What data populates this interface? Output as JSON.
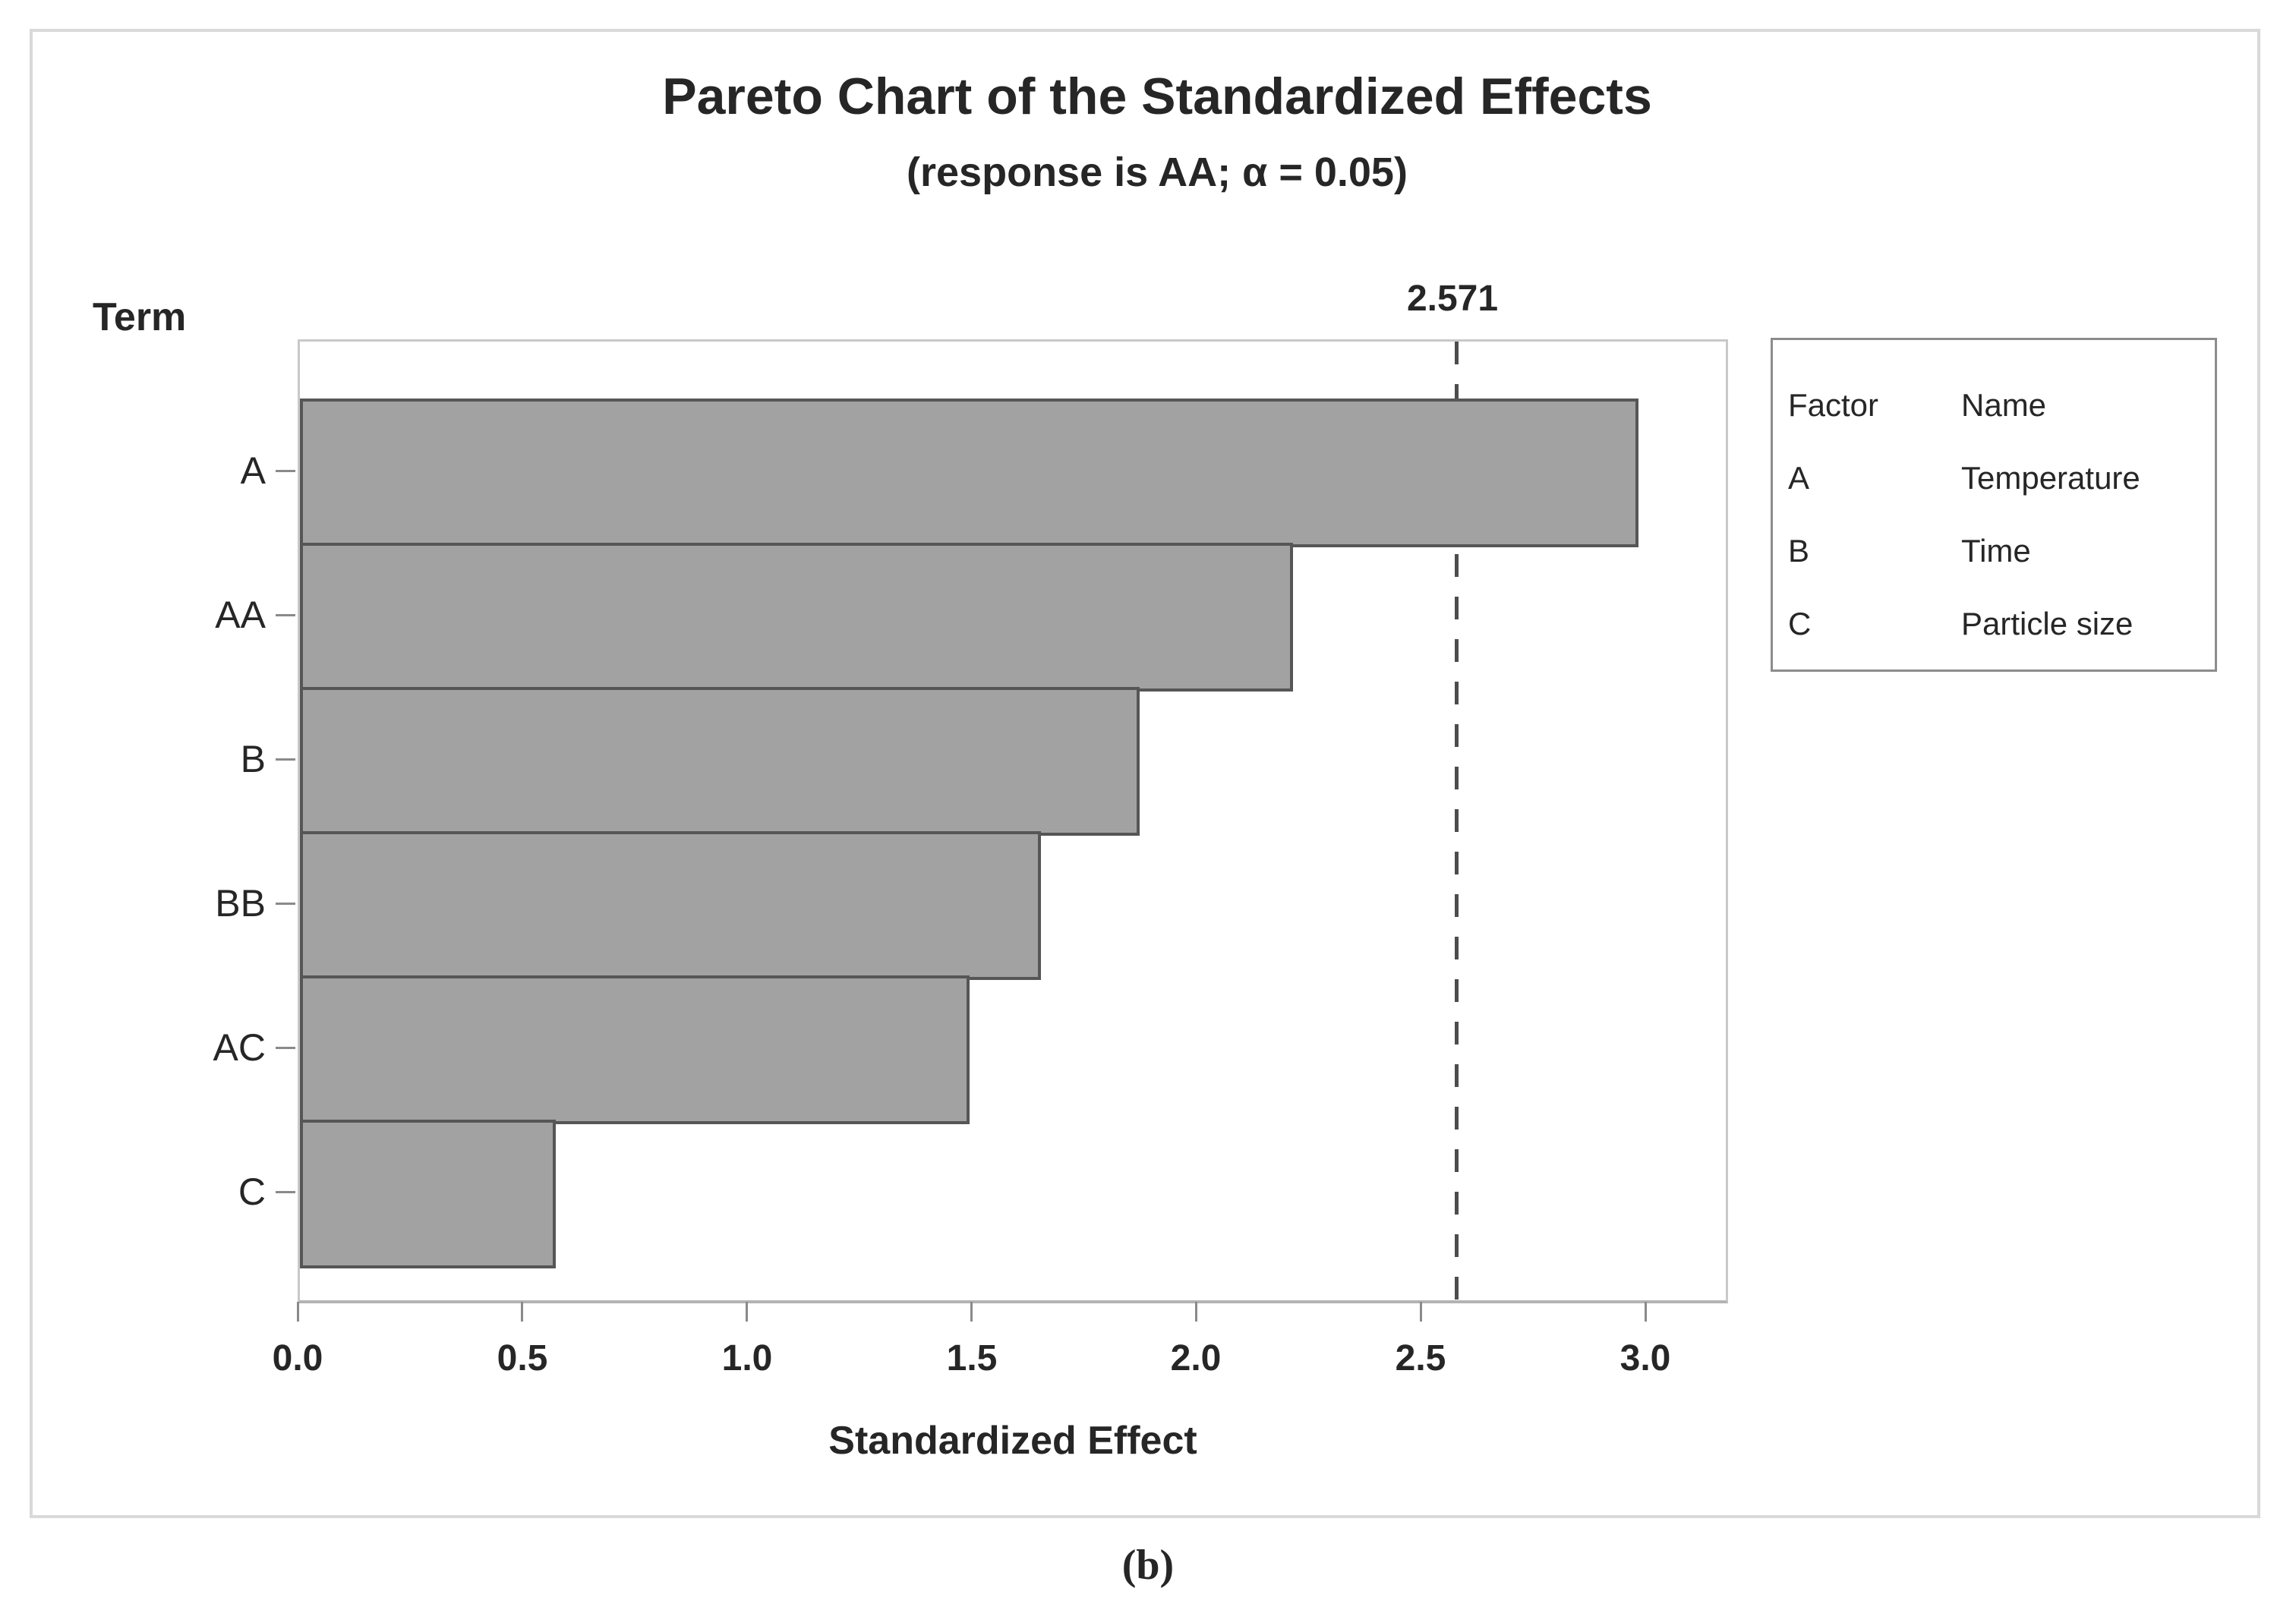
{
  "figure": {
    "caption": "(b)"
  },
  "chart_data": {
    "type": "bar",
    "orientation": "horizontal",
    "title": "Pareto Chart of the Standardized Effects",
    "subtitle": "(response is AA; α = 0.05)",
    "term_axis_label": "Term",
    "xlabel": "Standardized Effect",
    "categories": [
      "A",
      "AA",
      "B",
      "BB",
      "AC",
      "C"
    ],
    "values": [
      2.98,
      2.21,
      1.87,
      1.65,
      1.49,
      0.57
    ],
    "xlim": [
      0,
      3.184
    ],
    "x_ticks": [
      {
        "value": 0.0,
        "label": "0.0"
      },
      {
        "value": 0.5,
        "label": "0.5"
      },
      {
        "value": 1.0,
        "label": "1.0"
      },
      {
        "value": 1.5,
        "label": "1.5"
      },
      {
        "value": 2.0,
        "label": "2.0"
      },
      {
        "value": 2.5,
        "label": "2.5"
      },
      {
        "value": 3.0,
        "label": "3.0"
      }
    ],
    "reference_line": {
      "value": 2.571,
      "label": "2.571",
      "style": "dashed"
    },
    "legend": {
      "position": "right",
      "col1_header": "Factor",
      "col2_header": "Name",
      "rows": [
        {
          "factor": "A",
          "name": "Temperature"
        },
        {
          "factor": "B",
          "name": "Time"
        },
        {
          "factor": "C",
          "name": "Particle size"
        }
      ]
    },
    "grid": false,
    "colors": {
      "bar_fill": "#a2a2a2",
      "bar_border": "#565656",
      "plot_border": "#c9c9c9",
      "axis_line": "#b3b3b3",
      "tick_mark": "#8a8a8a",
      "reference_line": "#4d4d4d",
      "text": "#262626",
      "figure_border": "#d9d9d9",
      "legend_border": "#8c8c8c"
    }
  }
}
